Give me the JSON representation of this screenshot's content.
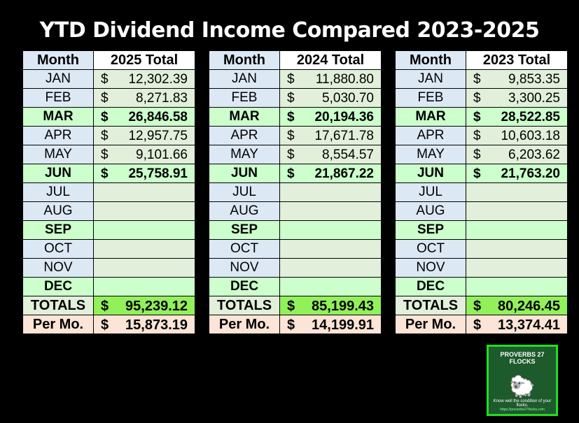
{
  "title": "YTD Dividend Income Compared 2023-2025",
  "header_month": "Month",
  "currency": "$",
  "tables": [
    {
      "header": "2025 Total",
      "rows": [
        {
          "month": "JAN",
          "value": "12,302.39"
        },
        {
          "month": "FEB",
          "value": "8,271.83"
        },
        {
          "month": "MAR",
          "value": "26,846.58"
        },
        {
          "month": "APR",
          "value": "12,957.75"
        },
        {
          "month": "MAY",
          "value": "9,101.66"
        },
        {
          "month": "JUN",
          "value": "25,758.91"
        },
        {
          "month": "JUL",
          "value": ""
        },
        {
          "month": "AUG",
          "value": ""
        },
        {
          "month": "SEP",
          "value": ""
        },
        {
          "month": "OCT",
          "value": ""
        },
        {
          "month": "NOV",
          "value": ""
        },
        {
          "month": "DEC",
          "value": ""
        }
      ],
      "totals_label": "TOTALS",
      "totals": "95,239.12",
      "per_label": "Per Mo.",
      "per": "15,873.19"
    },
    {
      "header": "2024 Total",
      "rows": [
        {
          "month": "JAN",
          "value": "11,880.80"
        },
        {
          "month": "FEB",
          "value": "5,030.70"
        },
        {
          "month": "MAR",
          "value": "20,194.36"
        },
        {
          "month": "APR",
          "value": "17,671.78"
        },
        {
          "month": "MAY",
          "value": "8,554.57"
        },
        {
          "month": "JUN",
          "value": "21,867.22"
        },
        {
          "month": "JUL",
          "value": ""
        },
        {
          "month": "AUG",
          "value": ""
        },
        {
          "month": "SEP",
          "value": ""
        },
        {
          "month": "OCT",
          "value": ""
        },
        {
          "month": "NOV",
          "value": ""
        },
        {
          "month": "DEC",
          "value": ""
        }
      ],
      "totals_label": "TOTALS",
      "totals": "85,199.43",
      "per_label": "Per Mo.",
      "per": "14,199.91"
    },
    {
      "header": "2023 Total",
      "rows": [
        {
          "month": "JAN",
          "value": "9,853.35"
        },
        {
          "month": "FEB",
          "value": "3,300.25"
        },
        {
          "month": "MAR",
          "value": "28,522.85"
        },
        {
          "month": "APR",
          "value": "10,603.18"
        },
        {
          "month": "MAY",
          "value": "6,203.62"
        },
        {
          "month": "JUN",
          "value": "21,763.20"
        },
        {
          "month": "JUL",
          "value": ""
        },
        {
          "month": "AUG",
          "value": ""
        },
        {
          "month": "SEP",
          "value": ""
        },
        {
          "month": "OCT",
          "value": ""
        },
        {
          "month": "NOV",
          "value": ""
        },
        {
          "month": "DEC",
          "value": ""
        }
      ],
      "totals_label": "TOTALS",
      "totals": "80,246.45",
      "per_label": "Per Mo.",
      "per": "13,374.41"
    }
  ],
  "logo": {
    "text": "PROVERBS 27 FLOCKS",
    "tagline": "Know well the condition of your flocks.",
    "url": "https://proverbs27flocks.com"
  }
}
